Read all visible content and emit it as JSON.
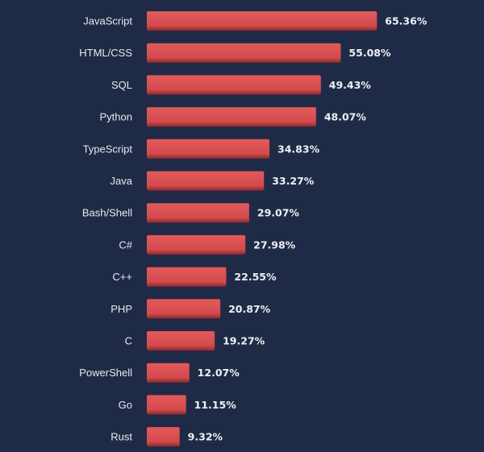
{
  "chart_data": {
    "type": "bar",
    "orientation": "horizontal",
    "title": "",
    "xlabel": "",
    "ylabel": "",
    "categories": [
      "JavaScript",
      "HTML/CSS",
      "SQL",
      "Python",
      "TypeScript",
      "Java",
      "Bash/Shell",
      "C#",
      "C++",
      "PHP",
      "C",
      "PowerShell",
      "Go",
      "Rust"
    ],
    "values": [
      65.36,
      55.08,
      49.43,
      48.07,
      34.83,
      33.27,
      29.07,
      27.98,
      22.55,
      20.87,
      19.27,
      12.07,
      11.15,
      9.32
    ],
    "value_labels": [
      "65.36%",
      "55.08%",
      "49.43%",
      "48.07%",
      "34.83%",
      "33.27%",
      "29.07%",
      "27.98%",
      "22.55%",
      "20.87%",
      "19.27%",
      "12.07%",
      "11.15%",
      "9.32%"
    ],
    "value_unit": "%",
    "xlim": [
      0,
      100
    ],
    "grid": false,
    "legend": "none",
    "colors": {
      "background": "#1f2b46",
      "bar": "#d34a4c",
      "bar_highlight": "#e35a5b",
      "bar_shadow": "#8f2a2d",
      "text": "#e6e9ef"
    }
  }
}
